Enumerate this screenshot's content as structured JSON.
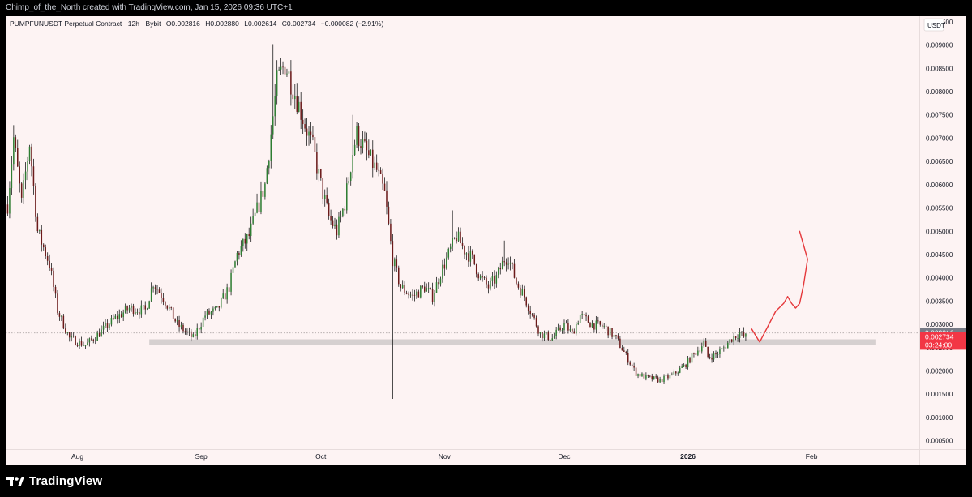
{
  "header": {
    "attribution": "Chimp_of_the_North created with TradingView.com, Jan 15, 2026 09:36 UTC+1"
  },
  "legend": {
    "symbol": "PUMPFUNUSDT Perpetual Contract · 12h · Bybit",
    "open": "O0.002816",
    "high": "H0.002880",
    "low": "L0.002614",
    "close": "C0.002734",
    "change": "−0.000082 (−2.91%)"
  },
  "footer": {
    "brand": "TradingView",
    "logo_icon": "tradingview-logo-icon"
  },
  "colors": {
    "background": "#fdf3f3",
    "up": "#2e7d32",
    "down": "#6b1a1a",
    "wick": "#1c1c1c",
    "drawing": "#e5383b",
    "zone": "#d6d0d0",
    "price_badge": "#f23645",
    "last_badge": "#787b86"
  },
  "chart_data": {
    "type": "candlestick",
    "y_unit": "USDT",
    "ylim": [
      0.00032,
      0.00962
    ],
    "y_ticks": [
      "0.009500",
      "0.009000",
      "0.008500",
      "0.008000",
      "0.007500",
      "0.007000",
      "0.006500",
      "0.006000",
      "0.005500",
      "0.005000",
      "0.004500",
      "0.004000",
      "0.003500",
      "0.003000",
      "0.002500",
      "0.002000",
      "0.001500",
      "0.001000",
      "0.000500"
    ],
    "x_labels": [
      {
        "label": "Aug",
        "date": "2025-08-01"
      },
      {
        "label": "Sep",
        "date": "2025-09-01"
      },
      {
        "label": "Oct",
        "date": "2025-10-01"
      },
      {
        "label": "Nov",
        "date": "2025-11-01"
      },
      {
        "label": "Dec",
        "date": "2025-12-01"
      },
      {
        "label": "2026",
        "date": "2026-01-01",
        "bold": true
      },
      {
        "label": "Feb",
        "date": "2026-02-01"
      }
    ],
    "x_range": [
      "2025-07-14",
      "2026-02-28"
    ],
    "first_candle": "2025-07-14T12:00",
    "candle_interval_hours": 12,
    "anchors": [
      [
        "2025-07-14",
        0.0051
      ],
      [
        "2025-07-16",
        0.007
      ],
      [
        "2025-07-18",
        0.0056
      ],
      [
        "2025-07-20",
        0.0069
      ],
      [
        "2025-07-22",
        0.005
      ],
      [
        "2025-07-25",
        0.0043
      ],
      [
        "2025-07-27",
        0.0033
      ],
      [
        "2025-07-30",
        0.0027
      ],
      [
        "2025-08-03",
        0.00255
      ],
      [
        "2025-08-07",
        0.00285
      ],
      [
        "2025-08-10",
        0.0031
      ],
      [
        "2025-08-14",
        0.00335
      ],
      [
        "2025-08-18",
        0.0033
      ],
      [
        "2025-08-20",
        0.0039
      ],
      [
        "2025-08-23",
        0.0035
      ],
      [
        "2025-08-26",
        0.003
      ],
      [
        "2025-08-30",
        0.0027
      ],
      [
        "2025-09-02",
        0.0032
      ],
      [
        "2025-09-05",
        0.0033
      ],
      [
        "2025-09-08",
        0.0038
      ],
      [
        "2025-09-10",
        0.0045
      ],
      [
        "2025-09-13",
        0.0049
      ],
      [
        "2025-09-17",
        0.006
      ],
      [
        "2025-09-20",
        0.0082
      ],
      [
        "2025-09-22",
        0.0086
      ],
      [
        "2025-09-24",
        0.0081
      ],
      [
        "2025-09-27",
        0.0073
      ],
      [
        "2025-09-29",
        0.0068
      ],
      [
        "2025-10-01",
        0.006
      ],
      [
        "2025-10-03",
        0.0053
      ],
      [
        "2025-10-05",
        0.005
      ],
      [
        "2025-10-07",
        0.0056
      ],
      [
        "2025-10-09",
        0.0067
      ],
      [
        "2025-10-10",
        0.0071
      ],
      [
        "2025-10-13",
        0.0066
      ],
      [
        "2025-10-15",
        0.0063
      ],
      [
        "2025-10-17",
        0.0058
      ],
      [
        "2025-10-19",
        0.0044
      ],
      [
        "2025-10-21",
        0.0038
      ],
      [
        "2025-10-24",
        0.0036
      ],
      [
        "2025-10-27",
        0.0038
      ],
      [
        "2025-10-29",
        0.0036
      ],
      [
        "2025-10-31",
        0.0041
      ],
      [
        "2025-11-02",
        0.0045
      ],
      [
        "2025-11-04",
        0.0049
      ],
      [
        "2025-11-06",
        0.0046
      ],
      [
        "2025-11-08",
        0.0044
      ],
      [
        "2025-11-10",
        0.004
      ],
      [
        "2025-11-12",
        0.0038
      ],
      [
        "2025-11-14",
        0.004
      ],
      [
        "2025-11-16",
        0.0044
      ],
      [
        "2025-11-17",
        0.00445
      ],
      [
        "2025-11-19",
        0.0039
      ],
      [
        "2025-11-21",
        0.0036
      ],
      [
        "2025-11-23",
        0.0032
      ],
      [
        "2025-11-25",
        0.0028
      ],
      [
        "2025-11-28",
        0.0027
      ],
      [
        "2025-12-01",
        0.003
      ],
      [
        "2025-12-03",
        0.0028
      ],
      [
        "2025-12-05",
        0.0032
      ],
      [
        "2025-12-08",
        0.003
      ],
      [
        "2025-12-11",
        0.00295
      ],
      [
        "2025-12-14",
        0.0027
      ],
      [
        "2025-12-16",
        0.0024
      ],
      [
        "2025-12-19",
        0.00195
      ],
      [
        "2025-12-22",
        0.00185
      ],
      [
        "2025-12-25",
        0.0018
      ],
      [
        "2025-12-28",
        0.0019
      ],
      [
        "2025-12-31",
        0.0021
      ],
      [
        "2026-01-02",
        0.0023
      ],
      [
        "2026-01-04",
        0.0025
      ],
      [
        "2026-01-05",
        0.0026
      ],
      [
        "2026-01-06",
        0.0023
      ],
      [
        "2026-01-08",
        0.00235
      ],
      [
        "2026-01-10",
        0.0025
      ],
      [
        "2026-01-12",
        0.0027
      ],
      [
        "2026-01-14",
        0.00282
      ],
      [
        "2026-01-15",
        0.00273
      ]
    ],
    "spikes": [
      {
        "date": "2025-09-19",
        "high": 0.00902
      },
      {
        "date": "2025-09-21",
        "high": 0.0087
      },
      {
        "date": "2025-10-09",
        "high": 0.0075
      },
      {
        "date": "2025-10-19",
        "low": 0.0014
      },
      {
        "date": "2025-11-03",
        "high": 0.00545
      },
      {
        "date": "2025-11-16",
        "high": 0.0048
      },
      {
        "date": "2025-07-16",
        "high": 0.00728
      },
      {
        "date": "2026-01-14",
        "high": 0.00288
      }
    ],
    "last_price": {
      "value": "0.002816",
      "y": 0.002816
    },
    "current_price": {
      "value": "0.002734",
      "y": 0.002734,
      "countdown": "03:24:00"
    },
    "support_zone": {
      "start": "2025-08-19",
      "end": "2026-02-17",
      "bottom": 0.00255,
      "top": 0.00268
    },
    "drawing_path": [
      [
        "2026-01-17",
        0.0029
      ],
      [
        "2026-01-19",
        0.00262
      ],
      [
        "2026-01-21",
        0.00295
      ],
      [
        "2026-01-23",
        0.00328
      ],
      [
        "2026-01-25",
        0.00345
      ],
      [
        "2026-01-26",
        0.0036
      ],
      [
        "2026-01-27",
        0.00345
      ],
      [
        "2026-01-28",
        0.00335
      ],
      [
        "2026-01-29",
        0.00345
      ],
      [
        "2026-01-30",
        0.00385
      ],
      [
        "2026-01-31",
        0.0044
      ],
      [
        "2026-01-30",
        0.0047
      ],
      [
        "2026-01-29",
        0.005
      ]
    ]
  }
}
